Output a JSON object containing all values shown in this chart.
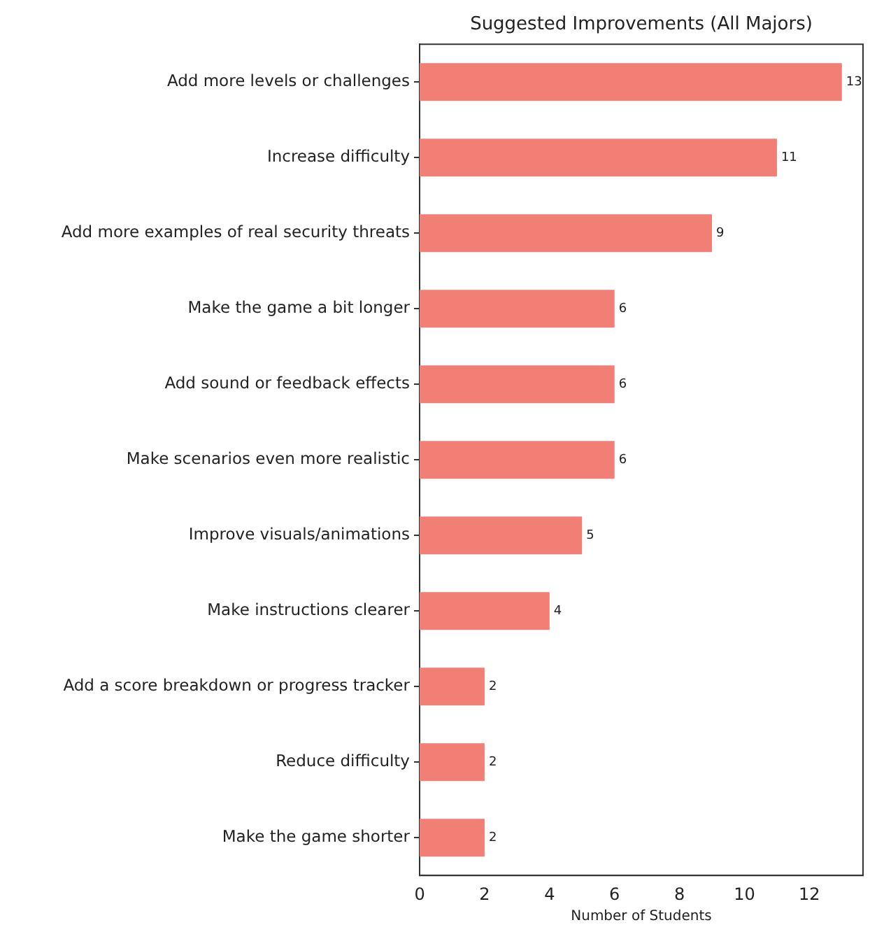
{
  "chart_data": {
    "type": "bar",
    "orientation": "horizontal",
    "title": "Suggested Improvements (All Majors)",
    "xlabel": "Number of Students",
    "categories": [
      "Add more levels or challenges",
      "Increase difficulty",
      "Add more examples of real security threats",
      "Make the game a bit longer",
      "Add sound or feedback effects",
      "Make scenarios even more realistic",
      "Improve visuals/animations",
      "Make instructions clearer",
      "Add a score breakdown or progress tracker",
      "Reduce difficulty",
      "Make the game shorter"
    ],
    "values": [
      13,
      11,
      9,
      6,
      6,
      6,
      5,
      4,
      2,
      2,
      2
    ],
    "color": "#f17f75",
    "xlim": [
      0,
      13.65
    ],
    "xticks": [
      0,
      2,
      4,
      6,
      8,
      10,
      12
    ],
    "grid": false,
    "legend": false,
    "data_labels": true
  }
}
